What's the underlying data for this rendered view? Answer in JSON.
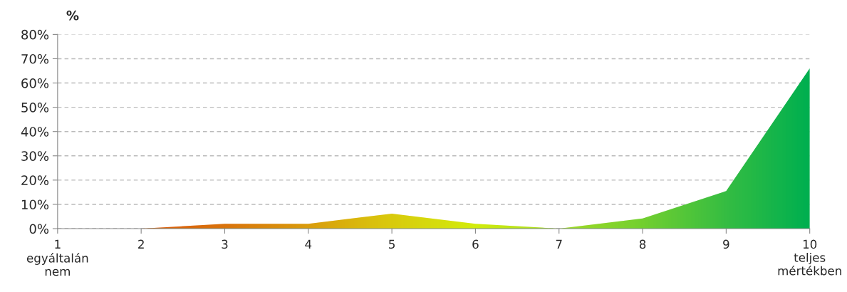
{
  "chart_data": {
    "type": "area",
    "ylabel": "%",
    "categories": [
      "1\negyáltalán\nnem",
      "2",
      "3",
      "4",
      "5",
      "6",
      "7",
      "8",
      "9",
      "10\nteljes\nmértékben"
    ],
    "values": [
      0,
      0,
      2,
      2,
      6.2,
      2,
      0,
      4.2,
      15.5,
      66
    ],
    "colors": [
      "#ff3c00",
      "#ff4a00",
      "#ff6a00",
      "#ff9a00",
      "#ffd000",
      "#f8f800",
      "#c0e41e",
      "#88d62a",
      "#40c040",
      "#00b050"
    ],
    "ylim": [
      0,
      80
    ],
    "yticks": [
      {
        "value": 0,
        "label": "0%"
      },
      {
        "value": 10,
        "label": "10%"
      },
      {
        "value": 20,
        "label": "20%"
      },
      {
        "value": 30,
        "label": "30%"
      },
      {
        "value": 40,
        "label": "40%"
      },
      {
        "value": 50,
        "label": "50%"
      },
      {
        "value": 60,
        "label": "60%"
      },
      {
        "value": 70,
        "label": "70%"
      },
      {
        "value": 80,
        "label": "80%"
      }
    ],
    "grid": "y",
    "legend": false
  }
}
